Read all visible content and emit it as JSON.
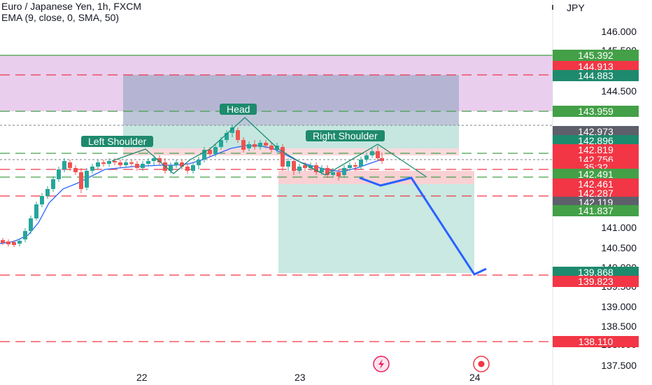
{
  "header": {
    "title": "Euro / Japanese Yen, 1h, FXCM",
    "indicator": "EMA (9, close, 0, SMA, 50)"
  },
  "price_axis": {
    "currency": "JPY",
    "labels": [
      "146.000",
      "145.500",
      "144.500",
      "141.000",
      "140.500",
      "140.000",
      "139.500",
      "139.000",
      "138.500",
      "138.000",
      "137.500"
    ]
  },
  "price_badges": [
    {
      "value": "145.392",
      "color": "#43a047"
    },
    {
      "value": "144.913",
      "color": "#f23645"
    },
    {
      "value": "144.883",
      "color": "#1e8a6d"
    },
    {
      "value": "143.959",
      "color": "#43a047"
    },
    {
      "value": "142.973",
      "color": "#5d606b"
    },
    {
      "value": "142.896",
      "color": "#1e8a6d"
    },
    {
      "value": "142.819",
      "color": "#f23645"
    },
    {
      "value": "142.756",
      "color": "#f23645"
    },
    {
      "value": "35:32",
      "color": "#f23645"
    },
    {
      "value": "142.491",
      "color": "#43a047"
    },
    {
      "value": "142.461",
      "color": "#f23645"
    },
    {
      "value": "142.287",
      "color": "#f23645"
    },
    {
      "value": "142.119",
      "color": "#5d606b"
    },
    {
      "value": "141.837",
      "color": "#43a047"
    },
    {
      "value": "139.868",
      "color": "#1e8a6d"
    },
    {
      "value": "139.823",
      "color": "#f23645"
    },
    {
      "value": "138.110",
      "color": "#f23645"
    }
  ],
  "time_axis": [
    "22",
    "23",
    "24"
  ],
  "pattern_labels": {
    "left_shoulder": "Left Shoulder",
    "head": "Head",
    "right_shoulder": "Right Shoulder"
  },
  "colors": {
    "up": "#26a69a",
    "down": "#ef5350",
    "ema": "#2962ff",
    "forecast": "#2962ff"
  },
  "icons": {
    "flash": "flash-icon",
    "record": "record-icon"
  }
}
